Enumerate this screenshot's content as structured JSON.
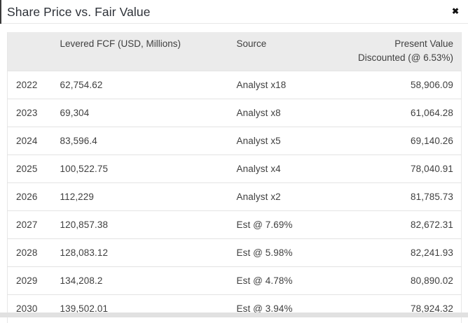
{
  "modal": {
    "title": "Share Price vs. Fair Value",
    "close_icon_glyph": "✖"
  },
  "table": {
    "headers": {
      "year": "",
      "fcf": "Levered FCF (USD, Millions)",
      "source": "Source",
      "present_value": "Present Value Discounted (@ 6.53%)"
    },
    "rows": [
      {
        "year": "2022",
        "fcf": "62,754.62",
        "source": "Analyst x18",
        "pv": "58,906.09"
      },
      {
        "year": "2023",
        "fcf": "69,304",
        "source": "Analyst x8",
        "pv": "61,064.28"
      },
      {
        "year": "2024",
        "fcf": "83,596.4",
        "source": "Analyst x5",
        "pv": "69,140.26"
      },
      {
        "year": "2025",
        "fcf": "100,522.75",
        "source": "Analyst x4",
        "pv": "78,040.91"
      },
      {
        "year": "2026",
        "fcf": "112,229",
        "source": "Analyst x2",
        "pv": "81,785.73"
      },
      {
        "year": "2027",
        "fcf": "120,857.38",
        "source": "Est @ 7.69%",
        "pv": "82,672.31"
      },
      {
        "year": "2028",
        "fcf": "128,083.12",
        "source": "Est @ 5.98%",
        "pv": "82,241.93"
      },
      {
        "year": "2029",
        "fcf": "134,208.2",
        "source": "Est @ 4.78%",
        "pv": "80,890.02"
      },
      {
        "year": "2030",
        "fcf": "139,502.01",
        "source": "Est @ 3.94%",
        "pv": "78,924.32"
      }
    ]
  },
  "colors": {
    "header_bg": "#ebebeb",
    "row_border": "#e3e3e3",
    "body_text": "#3f3f3f",
    "title_text": "#2d3138",
    "divider": "#e7e7e7",
    "bottom_strip": "#e1e1e1",
    "close_icon": "#111111"
  }
}
